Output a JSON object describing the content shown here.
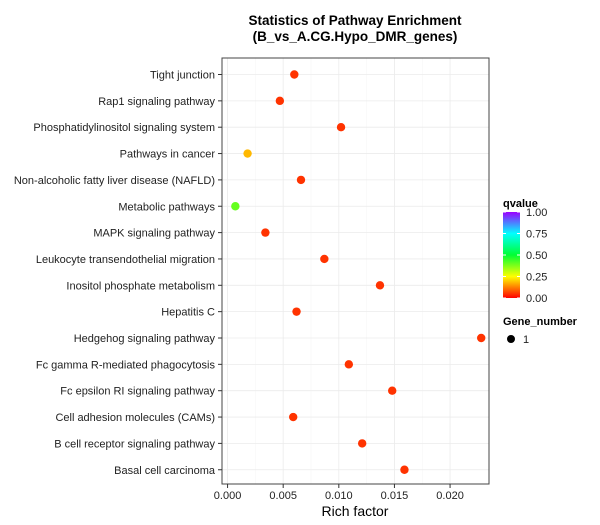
{
  "chart_data": {
    "type": "scatter",
    "title": [
      "Statistics of Pathway Enrichment",
      "(B_vs_A.CG.Hypo_DMR_genes)"
    ],
    "xlabel": "Rich factor",
    "ylabel": "",
    "xlim": [
      -0.0005,
      0.0235
    ],
    "xticks": [
      0.0,
      0.005,
      0.01,
      0.015,
      0.02
    ],
    "xtick_labels": [
      "0.000",
      "0.005",
      "0.010",
      "0.015",
      "0.020"
    ],
    "grid": true,
    "categories": [
      "Tight junction",
      "Rap1 signaling pathway",
      "Phosphatidylinositol signaling system",
      "Pathways in cancer",
      "Non-alcoholic fatty liver disease (NAFLD)",
      "Metabolic pathways",
      "MAPK signaling pathway",
      "Leukocyte transendothelial migration",
      "Inositol phosphate metabolism",
      "Hepatitis C",
      "Hedgehog signaling pathway",
      "Fc gamma R-mediated phagocytosis",
      "Fc epsilon RI signaling pathway",
      "Cell adhesion molecules (CAMs)",
      "B cell receptor signaling pathway",
      "Basal cell carcinoma"
    ],
    "points": [
      {
        "pathway": "Tight junction",
        "rich_factor": 0.006,
        "qvalue": 0.05,
        "gene_number": 1
      },
      {
        "pathway": "Rap1 signaling pathway",
        "rich_factor": 0.0047,
        "qvalue": 0.05,
        "gene_number": 1
      },
      {
        "pathway": "Phosphatidylinositol signaling system",
        "rich_factor": 0.0102,
        "qvalue": 0.05,
        "gene_number": 1
      },
      {
        "pathway": "Pathways in cancer",
        "rich_factor": 0.0018,
        "qvalue": 0.18,
        "gene_number": 1
      },
      {
        "pathway": "Non-alcoholic fatty liver disease (NAFLD)",
        "rich_factor": 0.0066,
        "qvalue": 0.05,
        "gene_number": 1
      },
      {
        "pathway": "Metabolic pathways",
        "rich_factor": 0.0007,
        "qvalue": 0.4,
        "gene_number": 1
      },
      {
        "pathway": "MAPK signaling pathway",
        "rich_factor": 0.0034,
        "qvalue": 0.05,
        "gene_number": 1
      },
      {
        "pathway": "Leukocyte transendothelial migration",
        "rich_factor": 0.0087,
        "qvalue": 0.05,
        "gene_number": 1
      },
      {
        "pathway": "Inositol phosphate metabolism",
        "rich_factor": 0.0137,
        "qvalue": 0.05,
        "gene_number": 1
      },
      {
        "pathway": "Hepatitis C",
        "rich_factor": 0.0062,
        "qvalue": 0.05,
        "gene_number": 1
      },
      {
        "pathway": "Hedgehog signaling pathway",
        "rich_factor": 0.0228,
        "qvalue": 0.05,
        "gene_number": 1
      },
      {
        "pathway": "Fc gamma R-mediated phagocytosis",
        "rich_factor": 0.0109,
        "qvalue": 0.05,
        "gene_number": 1
      },
      {
        "pathway": "Fc epsilon RI signaling pathway",
        "rich_factor": 0.0148,
        "qvalue": 0.05,
        "gene_number": 1
      },
      {
        "pathway": "Cell adhesion molecules (CAMs)",
        "rich_factor": 0.0059,
        "qvalue": 0.05,
        "gene_number": 1
      },
      {
        "pathway": "B cell receptor signaling pathway",
        "rich_factor": 0.0121,
        "qvalue": 0.05,
        "gene_number": 1
      },
      {
        "pathway": "Basal cell carcinoma",
        "rich_factor": 0.0159,
        "qvalue": 0.05,
        "gene_number": 1
      }
    ],
    "legend": {
      "placement": "right",
      "color_title": "qvalue",
      "color_ticks": [
        1.0,
        0.75,
        0.5,
        0.25,
        0.0
      ],
      "color_tick_labels": [
        "1.00",
        "0.75",
        "0.50",
        "0.25",
        "0.00"
      ],
      "size_title": "Gene_number",
      "size_values": [
        "1"
      ]
    },
    "colors": {
      "panel_border": "#444444",
      "grid_major": "#ebebeb",
      "gradient": [
        {
          "at": 0.0,
          "color": "#ff0000"
        },
        {
          "at": 0.25,
          "color": "#ffff00"
        },
        {
          "at": 0.5,
          "color": "#00ff33"
        },
        {
          "at": 0.75,
          "color": "#00ffff"
        },
        {
          "at": 1.0,
          "color": "#9b00ff"
        }
      ]
    }
  }
}
